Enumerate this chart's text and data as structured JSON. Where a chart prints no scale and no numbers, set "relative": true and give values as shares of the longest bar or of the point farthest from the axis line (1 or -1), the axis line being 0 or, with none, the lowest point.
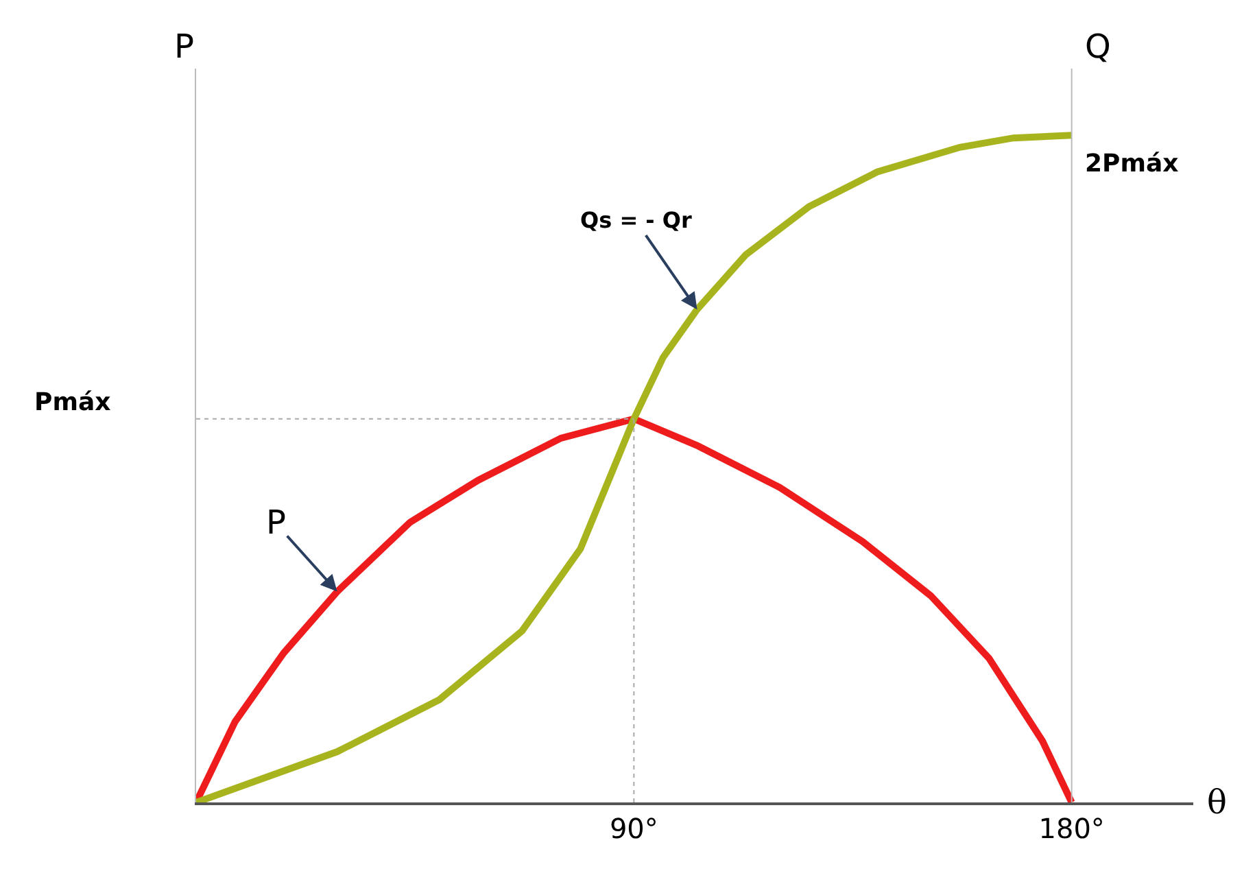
{
  "chart_data": {
    "type": "line",
    "relative": true,
    "xlabel": "θ",
    "ylabel": "P",
    "y2label": "Q",
    "x": [
      0,
      8,
      18,
      29,
      44,
      58,
      75,
      90,
      103,
      120,
      137,
      151,
      163,
      174,
      180
    ],
    "xlim": [
      0,
      205
    ],
    "xticks": [
      {
        "value": 90,
        "label": "90°"
      },
      {
        "value": 180,
        "label": "180°"
      }
    ],
    "series": [
      {
        "color": "#ee1c1c",
        "values": [
          0,
          0.121,
          0.224,
          0.316,
          0.42,
          0.483,
          0.546,
          0.575,
          0.535,
          0.472,
          0.391,
          0.31,
          0.216,
          0.092,
          0
        ]
      },
      {
        "color": "#a8b41e",
        "x": [
          0,
          29,
          50,
          67,
          79,
          90,
          96,
          103,
          113,
          126,
          140,
          157,
          168,
          180
        ],
        "values": [
          0,
          0.076,
          0.154,
          0.257,
          0.38,
          0.575,
          0.667,
          0.739,
          0.821,
          0.893,
          0.945,
          0.982,
          0.996,
          1.0
        ]
      }
    ],
    "ref_lines": [
      {
        "axis": "x",
        "value": 90,
        "color": "#aaaaaa",
        "line_style": "dotted"
      },
      {
        "axis": "y",
        "value": 0.575,
        "color": "#aaaaaa",
        "line_style": "dotted"
      },
      {
        "axis": "x",
        "value": 180,
        "color": "#bbbbbb",
        "line_style": "solid"
      }
    ],
    "annotations": [
      "Qs = - Qr",
      "P",
      "Pmáx",
      "2Pmáx"
    ],
    "marker": "none",
    "line_style": "solid"
  }
}
